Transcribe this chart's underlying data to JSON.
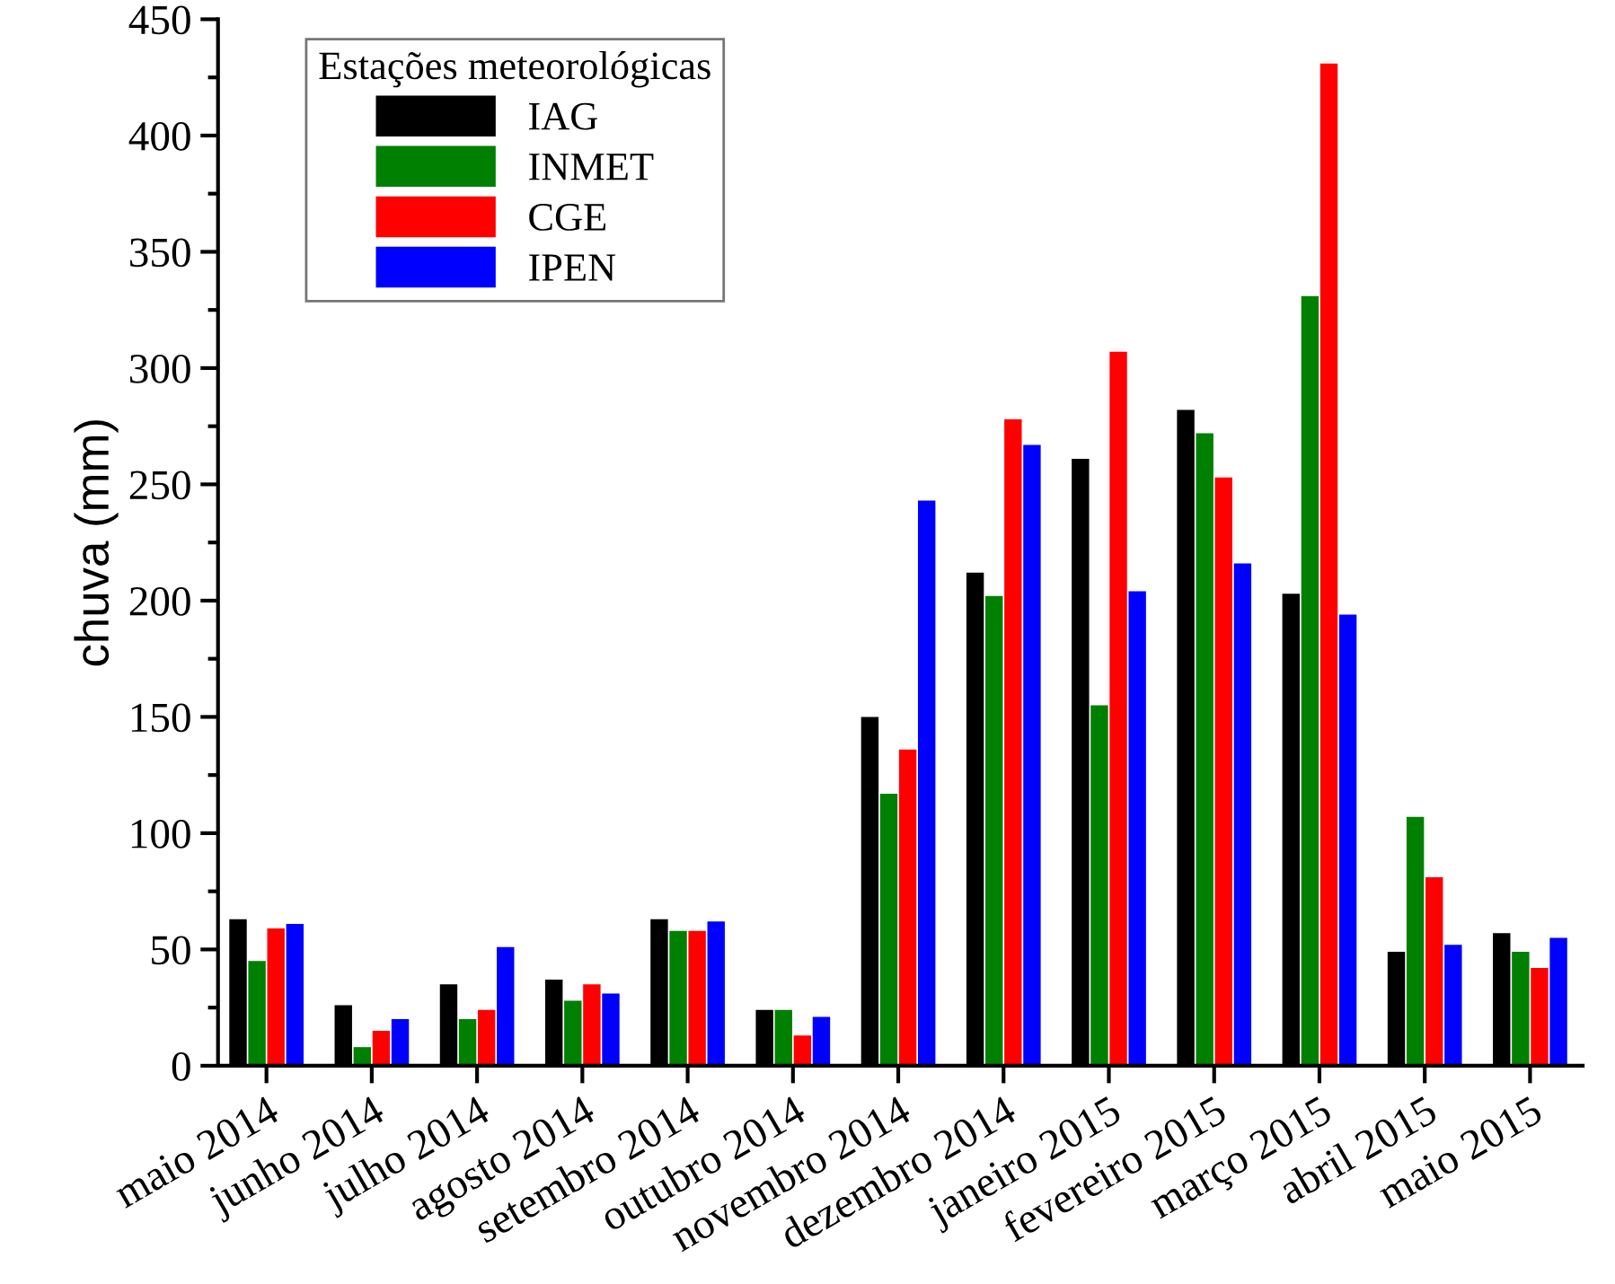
{
  "chart_data": {
    "type": "bar",
    "ylabel": "chuva (mm)",
    "legend_title": "Estações meteorológicas",
    "legend": "top left",
    "categories": [
      "maio 2014",
      "junho 2014",
      "julho 2014",
      "agosto 2014",
      "setembro 2014",
      "outubro 2014",
      "novembro 2014",
      "dezembro 2014",
      "janeiro 2015",
      "fevereiro 2015",
      "março 2015",
      "abril 2015",
      "maio 2015"
    ],
    "series": [
      {
        "name": "IAG",
        "color": "#000000",
        "values": [
          63,
          26,
          35,
          37,
          63,
          24,
          150,
          212,
          261,
          282,
          203,
          49,
          57
        ]
      },
      {
        "name": "INMET",
        "color": "#008000",
        "values": [
          45,
          8,
          20,
          28,
          58,
          24,
          117,
          202,
          155,
          272,
          331,
          107,
          49
        ]
      },
      {
        "name": "CGE",
        "color": "#ff0000",
        "values": [
          59,
          15,
          24,
          35,
          58,
          13,
          136,
          278,
          307,
          253,
          431,
          81,
          42
        ]
      },
      {
        "name": "IPEN",
        "color": "#0000ff",
        "values": [
          61,
          20,
          51,
          31,
          62,
          21,
          243,
          267,
          204,
          216,
          194,
          52,
          55
        ]
      }
    ],
    "ylim": [
      0,
      450
    ],
    "yticks": [
      0,
      50,
      100,
      150,
      200,
      250,
      300,
      350,
      400,
      450
    ],
    "grid": false
  }
}
